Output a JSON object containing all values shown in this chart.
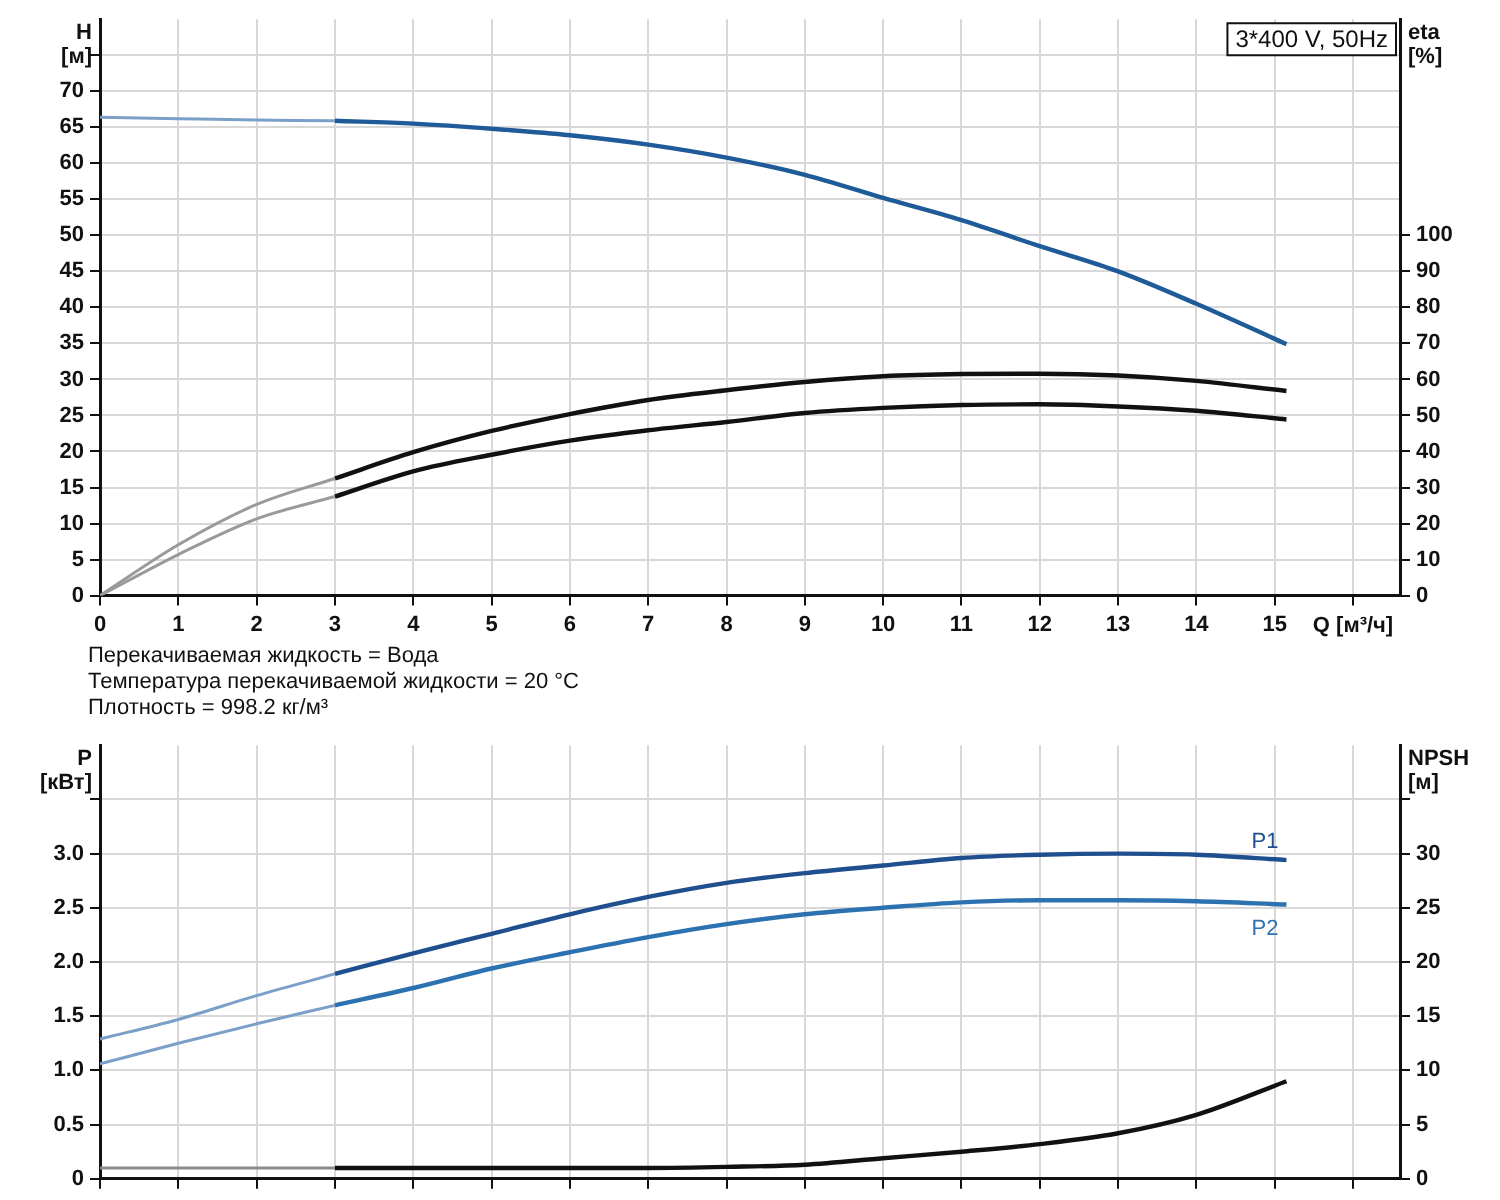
{
  "chart_data": [
    {
      "type": "line",
      "ylabel": "H [м]",
      "y2label": "eta [%]",
      "xlabel": "Q [м³/ч]",
      "xlim": [
        0,
        16.6
      ],
      "xticks": [
        0,
        1,
        2,
        3,
        4,
        5,
        6,
        7,
        8,
        9,
        10,
        11,
        12,
        13,
        14,
        15,
        {
          "value": 16,
          "label": null
        }
      ],
      "ylim": [
        0,
        80
      ],
      "yticks": [
        0,
        5,
        10,
        15,
        20,
        25,
        30,
        35,
        40,
        45,
        50,
        55,
        60,
        65,
        70,
        {
          "value": 75,
          "label": null
        }
      ],
      "y2lim": [
        0,
        160
      ],
      "y2ticks": [
        0,
        10,
        20,
        30,
        40,
        50,
        60,
        70,
        80,
        90,
        100
      ],
      "grid": true,
      "legend": false,
      "annotations": [
        "3*400 V, 50Hz",
        "Перекачиваемая жидкость = Вода",
        "Температура перекачиваемой жидкости = 20 °C",
        "Плотность = 998.2 кг/м³"
      ],
      "series": [
        {
          "color": "#7a9fc8",
          "x": [
            0,
            1,
            2,
            3
          ],
          "values": [
            66.4,
            66.2,
            66.0,
            65.9
          ]
        },
        {
          "color": "#1f5a99",
          "x": [
            3,
            4,
            5,
            6,
            7,
            8,
            9,
            10,
            11,
            12,
            13,
            14,
            15.15
          ],
          "values": [
            65.9,
            65.5,
            64.8,
            63.9,
            62.6,
            60.8,
            58.4,
            55.2,
            52.1,
            48.5,
            45.0,
            40.5,
            34.9
          ]
        },
        {
          "color": "#9a9a9a",
          "axis": "y2",
          "x": [
            0,
            1,
            2,
            3
          ],
          "values": [
            0,
            14.1,
            25.3,
            32.5
          ]
        },
        {
          "color": "#111111",
          "axis": "y2",
          "x": [
            3,
            4,
            5,
            6,
            7,
            8,
            9,
            10,
            11,
            12,
            13,
            14,
            15.15
          ],
          "values": [
            32.5,
            39.8,
            45.7,
            50.4,
            54.3,
            57.0,
            59.3,
            60.9,
            61.5,
            61.6,
            61.1,
            59.6,
            56.8
          ]
        },
        {
          "color": "#9a9a9a",
          "axis": "y2",
          "x": [
            0,
            1,
            2,
            3
          ],
          "values": [
            0,
            11.4,
            21.3,
            27.5
          ]
        },
        {
          "color": "#111111",
          "axis": "y2",
          "x": [
            3,
            4,
            5,
            6,
            7,
            8,
            9,
            10,
            11,
            12,
            13,
            14,
            15.15
          ],
          "values": [
            27.5,
            34.5,
            39.1,
            43.0,
            45.9,
            48.2,
            50.7,
            52.1,
            52.9,
            53.1,
            52.5,
            51.3,
            48.9
          ]
        }
      ]
    },
    {
      "type": "line",
      "ylabel": "P [кВт]",
      "y2label": "NPSH [м]",
      "xlim": [
        0,
        16.6
      ],
      "xticks": [
        0,
        1,
        2,
        3,
        4,
        5,
        6,
        7,
        8,
        9,
        10,
        11,
        12,
        13,
        14,
        15,
        16
      ],
      "tick_labels": "y",
      "ylim": [
        0,
        4
      ],
      "yticks": [
        0,
        {
          "value": 0.5,
          "label": "0.5"
        },
        {
          "value": 1,
          "label": "1.0"
        },
        {
          "value": 1.5,
          "label": "1.5"
        },
        {
          "value": 2,
          "label": "2.0"
        },
        {
          "value": 2.5,
          "label": "2.5"
        },
        {
          "value": 3,
          "label": "3.0"
        },
        {
          "value": 3.5,
          "label": null
        }
      ],
      "y2lim": [
        0,
        40
      ],
      "y2ticks": [
        0,
        5,
        10,
        15,
        20,
        25,
        30,
        {
          "value": 35,
          "label": null
        }
      ],
      "grid": true,
      "legend": false,
      "series": [
        {
          "color": "#7a9fc8",
          "x": [
            0,
            1,
            2,
            3
          ],
          "values": [
            1.29,
            1.47,
            1.69,
            1.89
          ]
        },
        {
          "name": "P1",
          "color": "#1f4f8f",
          "x": [
            3,
            4,
            5,
            6,
            7,
            8,
            9,
            10,
            11,
            12,
            13,
            14,
            15.15
          ],
          "values": [
            1.89,
            2.08,
            2.26,
            2.44,
            2.6,
            2.73,
            2.82,
            2.89,
            2.96,
            2.99,
            3.0,
            2.99,
            2.94
          ]
        },
        {
          "color": "#7a9fc8",
          "x": [
            0,
            1,
            2,
            3
          ],
          "values": [
            1.06,
            1.25,
            1.43,
            1.6
          ]
        },
        {
          "name": "P2",
          "color": "#2d72b0",
          "x": [
            3,
            4,
            5,
            6,
            7,
            8,
            9,
            10,
            11,
            12,
            13,
            14,
            15.15
          ],
          "values": [
            1.6,
            1.76,
            1.94,
            2.09,
            2.23,
            2.35,
            2.44,
            2.5,
            2.55,
            2.57,
            2.57,
            2.56,
            2.53
          ]
        },
        {
          "color": "#8a8a8a",
          "axis": "y2",
          "x": [
            0,
            1,
            2,
            3
          ],
          "values": [
            1.0,
            1.0,
            1.0,
            1.0
          ]
        },
        {
          "color": "#111111",
          "axis": "y2",
          "x": [
            3,
            4,
            5,
            6,
            7,
            8,
            9,
            10,
            11,
            12,
            13,
            14,
            15.15
          ],
          "values": [
            1.0,
            1.0,
            1.0,
            1.0,
            1.0,
            1.1,
            1.3,
            1.9,
            2.5,
            3.2,
            4.2,
            5.9,
            9.0
          ]
        }
      ]
    }
  ]
}
